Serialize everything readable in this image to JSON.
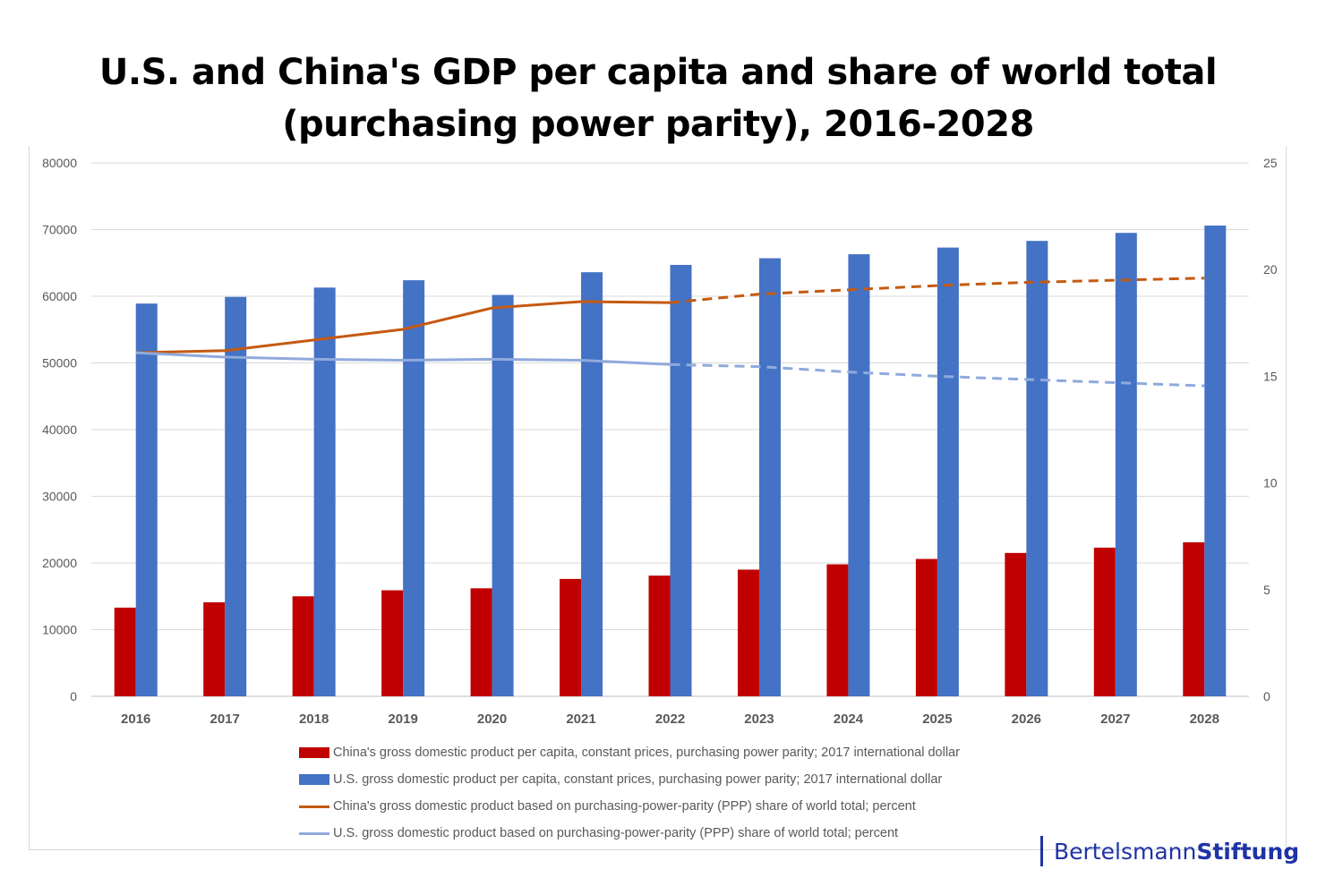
{
  "title_line1": "U.S. and China's GDP per capita and share of world total",
  "title_line2": "(purchasing power parity), 2016-2028",
  "logo": {
    "part1": "Bertelsmann",
    "part2": "Stiftung",
    "color": "#1f33a6"
  },
  "chart_data": {
    "type": "bar",
    "categories": [
      "2016",
      "2017",
      "2018",
      "2019",
      "2020",
      "2021",
      "2022",
      "2023",
      "2024",
      "2025",
      "2026",
      "2027",
      "2028"
    ],
    "y_left": {
      "ylim": [
        0,
        80000
      ],
      "ticks": [
        "0",
        "10000",
        "20000",
        "30000",
        "40000",
        "50000",
        "60000",
        "70000",
        "80000"
      ]
    },
    "y_right": {
      "ylim": [
        0,
        25
      ],
      "ticks": [
        "0",
        "5",
        "10",
        "15",
        "20",
        "25"
      ]
    },
    "grid": true,
    "legend_position": "bottom",
    "series": [
      {
        "name": "China's gross domestic product per capita, constant prices, purchasing power parity; 2017 international dollar",
        "type": "bar",
        "axis": "left",
        "color": "#c00000",
        "values": [
          13300,
          14100,
          15000,
          15900,
          16200,
          17600,
          18100,
          19000,
          19800,
          20600,
          21500,
          22300,
          23100
        ]
      },
      {
        "name": "U.S. gross domestic product per capita, constant prices, purchasing power parity; 2017 international dollar",
        "type": "bar",
        "axis": "left",
        "color": "#4472c4",
        "values": [
          58900,
          59900,
          61300,
          62400,
          60200,
          63600,
          64700,
          65700,
          66300,
          67300,
          68300,
          69500,
          70600
        ]
      },
      {
        "name": "China's gross domestic product based on purchasing-power-parity (PPP) share of world total; percent",
        "type": "line",
        "axis": "right",
        "color": "#c55a11",
        "dashed_from": "2022",
        "values": [
          16.1,
          16.2,
          16.7,
          17.2,
          18.2,
          18.5,
          18.45,
          18.85,
          19.05,
          19.25,
          19.4,
          19.5,
          19.6
        ]
      },
      {
        "name": "U.S. gross domestic product based on purchasing-power-parity (PPP) share of world total; percent",
        "type": "line",
        "axis": "right",
        "color": "#8faadc",
        "dashed_from": "2022",
        "values": [
          16.1,
          15.9,
          15.8,
          15.75,
          15.8,
          15.75,
          15.55,
          15.45,
          15.2,
          15.0,
          14.85,
          14.7,
          14.55
        ]
      }
    ]
  }
}
